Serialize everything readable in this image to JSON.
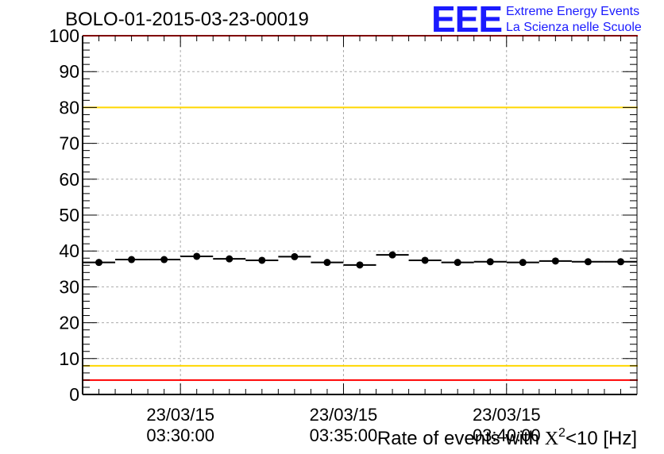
{
  "header": {
    "run_title": "BOLO-01-2015-03-23-00019",
    "logo_text": "EEE",
    "logo_line1": "Extreme Energy Events",
    "logo_line2": "La Scienza nelle Scuole"
  },
  "colors": {
    "logo": "#1a1aff",
    "red_line": "#ff0000",
    "yellow_line": "#ffd700",
    "points": "#000000",
    "grid": "#aaaaaa"
  },
  "chart_data": {
    "type": "scatter",
    "title": "BOLO-01-2015-03-23-00019",
    "xlabel": "Rate of events with X²<10 [Hz]",
    "xlabel_parts": {
      "prefix": "Rate of events with ",
      "symbol": "X",
      "sup": "2",
      "suffix": "<10 [Hz]"
    },
    "ylabel": "",
    "ylim": [
      0,
      100
    ],
    "y_ticks": [
      0,
      10,
      20,
      30,
      40,
      50,
      60,
      70,
      80,
      90,
      100
    ],
    "x_range_minutes": [
      27.0,
      44.0
    ],
    "x_tick_labels": [
      {
        "minute": 30,
        "date": "23/03/15",
        "time": "03:30:00"
      },
      {
        "minute": 35,
        "date": "23/03/15",
        "time": "03:35:00"
      },
      {
        "minute": 40,
        "date": "23/03/15",
        "time": "03:40:00"
      }
    ],
    "grid": true,
    "series": [
      {
        "x_minutes": [
          27.5,
          28.5,
          29.5,
          30.5,
          31.5,
          32.5,
          33.5,
          34.5,
          35.5,
          36.5,
          37.5,
          38.5,
          39.5,
          40.5,
          41.5,
          42.5,
          43.5
        ],
        "x_half_width": 0.5,
        "values": [
          36.8,
          37.6,
          37.6,
          38.5,
          37.8,
          37.4,
          38.4,
          36.8,
          36.1,
          38.9,
          37.4,
          36.8,
          37.0,
          36.8,
          37.2,
          37.0,
          37.0
        ]
      }
    ],
    "reference_lines": [
      {
        "y": 100,
        "color": "#ff0000"
      },
      {
        "y": 80,
        "color": "#ffd700"
      },
      {
        "y": 8,
        "color": "#ffd700"
      },
      {
        "y": 4,
        "color": "#ff0000"
      }
    ]
  }
}
